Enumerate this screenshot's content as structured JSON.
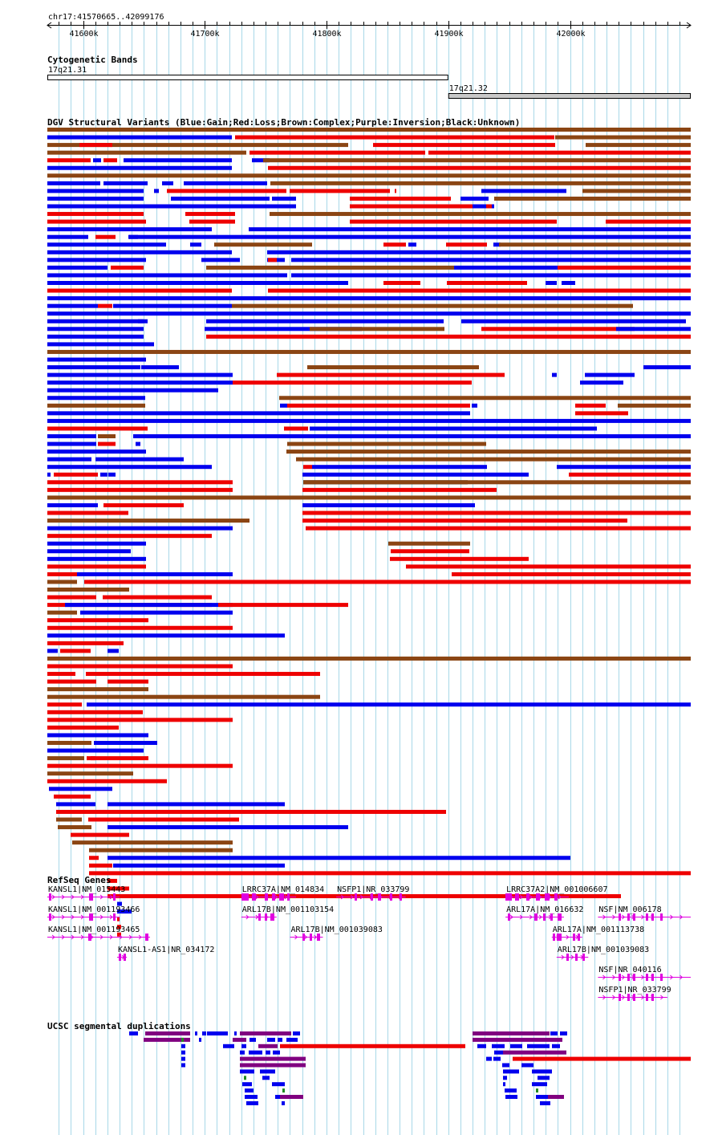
{
  "view": {
    "title": "chr17:41570665..42099176",
    "start": 41570665,
    "end": 42099176,
    "ticks": [
      {
        "pos": 41600000,
        "label": "41600k"
      },
      {
        "pos": 41700000,
        "label": "41700k"
      },
      {
        "pos": 41800000,
        "label": "41800k"
      },
      {
        "pos": 41900000,
        "label": "41900k"
      },
      {
        "pos": 42000000,
        "label": "42000k"
      }
    ],
    "grid_step": 10000
  },
  "colors": {
    "blue": "#0000ee",
    "red": "#ee0000",
    "brown": "#8b4513",
    "black": "#000000",
    "purple": "#800080",
    "green": "#228b22",
    "magenta": "#e000e0",
    "grid": "#a8d8e8",
    "band": "#c8c8c8"
  },
  "tracks": {
    "cyto": {
      "title": "Cytogenetic Bands",
      "bands": [
        {
          "name": "17q21.31",
          "start": 41570665,
          "end": 41900000,
          "fill": "#ffffff"
        },
        {
          "name": "17q21.32",
          "start": 41900000,
          "end": 42099176,
          "fill": "#c8c8c8"
        }
      ]
    },
    "dgv": {
      "title": "DGV Structural Variants (Blue:Gain;Red:Loss;Brown:Complex;Purple:Inversion;Black:Unknown)",
      "legend": {
        "B": "Gain",
        "R": "Loss",
        "N": "Complex",
        "P": "Inversion",
        "K": "Unknown"
      },
      "rows": [
        "N:41570665-42099176",
        "B:41570665-41722000|R:41725000-41987000|N:41988000-42099176",
        "N:41570665-41818000|R:41597000-41624000|R:41838000-41988000|N:42013000-42099176",
        "N:41570665-41734000|R:41737000-41881000|R:41884000-42099176",
        "R:41570665-41606000|B:41608000-41615000|R:41617000-41628000|B:41633000-41722000|B:41739000-41753000|N:41748000-42099176",
        "B:41570665-41722000|R:41752000-42099176",
        "N:41570665-42099176",
        "B:41570665-41614000|B:41617000-41653000|B:41665000-41674000|B:41683000-41751000|N:41754000-42099176",
        "B:41570665-41650000|B:41658000-41662000|R:41669000-41767000|R:41770000-41852000|R:41856000-41857000|B:41927000-41997000|N:42010000-42099176",
        "B:41570665-41650000|B:41672000-41753000|B:41755000-41775000|R:41819000-41902000|B:41910000-41933000|N:41938000-42099176",
        "B:41570665-41775000|R:41819000-41938000|B:41920000-41931000|B:41936000-41938000",
        "R:41570665-41650000|R:41684000-41725000|N:41753000-42099176",
        "R:41570665-41652000|R:41687000-41725000|R:41819000-41967000|R:41925000-41989000|R:42029000-42099176",
        "B:41570665-41706000|B:41736000-42099176",
        "B:41570665-41604000|R:41610000-41627000|B:41637000-41645000|B:41638000-42099176",
        "B:41570665-41668000|B:41688000-41697000|N:41708000-41788000|R:41847000-41865000|B:41867000-41874000|R:41898000-41932000|B:41937000-41943000|N:41942000-42099176",
        "B:41570665-41722000|B:41751000-42099176",
        "B:41570665-41652000|B:41697000-41729000|B:41751000-41766000|R:41752000-41759000|B:41771000-42099176",
        "B:41570665-41620000|R:41623000-41650000|N:41701000-41905000|B:41905000-41990000|R:41990000-42099176",
        "B:41570665-41768000|B:41771000-42099176",
        "B:41570665-41818000|R:41847000-41877000|R:41899000-41965000|B:41980000-41989000|B:41993000-42004000",
        "R:41570665-41722000|R:41752000-42099176",
        "B:41570665-42099176",
        "B:41570665-41612000|R:41612000-41624000|B:41625000-41722000|N:41722000-42052000",
        "B:41570665-42099176",
        "B:41570665-41653000|B:41645000-41650000|B:41701000-41896000|B:41911000-42095000",
        "B:41570665-41650000|B:41700000-41829000|N:41786000-41897000|R:41927000-42053000|B:42038000-42099176",
        "B:41570665-41650000|R:41701000-42099176",
        "B:41570665-41658000",
        "N:41570665-42099176",
        "B:41570665-41652000",
        "B:41570665-41647000|B:41648000-41679000|N:41784000-41925000|B:42060000-42099176",
        "B:41570665-41723000|R:41759000-41946000|B:41985000-41989000|B:42012000-42053000",
        "B:41570665-41723000|R:41723000-41919000|B:42008000-42044000",
        "B:41570665-41711000",
        "B:41570665-41651000|N:41761000-42099176",
        "N:41570665-41651000|B:41762000-41768000|R:41768000-41918000|B:41919000-41924000|R:42004000-42029000|N:42039000-42099176",
        "B:41570665-41918000|R:42004000-42048000",
        "B:41570665-42099176",
        "R:41570665-41653000|R:41765000-41785000|B:41786000-42022000",
        "B:41570665-41611000|N:41612000-41627000|B:41641000-42099176",
        "B:41570665-41611000|R:41612000-41627000|B:41643000-41647000|N:41768000-41931000",
        "B:41570665-41652000|N:41767000-42099176",
        "B:41570665-41607000|B:41610000-41683000|N:41775000-42099176",
        "B:41570665-41706000|R:41781000-41788000|B:41788000-41932000|B:41989000-42099176",
        "B:41570665-41573000|R:41576000-41612000|B:41614000-41620000|B:41621000-41627000|B:41780000-41966000|R:41999000-42099176",
        "R:41570665-41723000|K:41781000-41916000|N:41781000-42099176",
        "R:41570665-41723000|R:41780000-41940000",
        "N:41570665-42099176",
        "B:41570665-41612000|R:41617000-41683000|B:41780000-41922000",
        "R:41570665-41637000|R:41780000-42099176",
        "N:41570665-41737000|R:41780000-42047000",
        "B:41570665-41723000|R:41783000-42099176",
        "R:41570665-41706000",
        "B:41570665-41652000|N:41851000-41918000",
        "B:41570665-41639000|R:41853000-41917000",
        "B:41570665-41652000|R:41852000-41966000",
        "R:41570665-41652000|R:41865000-42099176",
        "R:41570665-41595000|B:41595000-41723000|R:41903000-42099176",
        "N:41570665-41595000|R:41605000-41629000|R:41601000-42099176",
        "N:41570665-41638000",
        "R:41570665-41611000|R:41616000-41706000",
        "R:41570665-41706000|B:41585000-41723000|R:41711000-41818000",
        "N:41570665-41595000|B:41598000-41723000",
        "R:41570665-41654000",
        "R:41570665-41723000",
        "B:41570665-41766000",
        "R:41570665-41633000",
        "B:41570665-41579000|R:41581000-41606000|B:41620000-41629000",
        "N:41570665-42099176",
        "R:41570665-41723000",
        "R:41570665-41594000|R:41602000-41795000",
        "R:41570665-41611000|R:41620000-41654000",
        "N:41570665-41654000",
        "N:41570665-41795000",
        "R:41570665-41599000|B:41603000-42099176",
        "R:41570665-41649000",
        "R:41570665-41723000",
        "R:41570665-41629000",
        "B:41570665-41654000",
        "N:41570665-41607000|B:41609000-41661000",
        "B:41570665-41650000",
        "N:41570665-41601000|R:41606000-41610000|R:41603000-41654000",
        "R:41570665-41723000",
        "N:41570665-41641000",
        "R:41570665-41669000",
        "B:41572000-41624000",
        "R:41576000-41606000",
        "B:41578000-41610000|B:41620000-41766000",
        "R:41578000-41898000",
        "N:41578000-41599000|R:41604000-41728000",
        "N:41579000-41607000|B:41620000-41818000",
        "R:41590000-41638000",
        "N:41591000-41723000",
        "N:41605000-41723000",
        "R:41605000-41613000|B:41620000-42000000",
        "R:41605000-41624000|B:41625000-41766000",
        "R:41605000-42099176",
        "R:41620000-41628000",
        "R:41620000-41638000",
        "R:41620000-42042000",
        "B:41628000-41632000",
        "B:41628000-41640000",
        "R:41628000-41630000",
        "R:41628000-41631000",
        "R:41628000-41631000"
      ]
    },
    "refseq": {
      "title": "RefSeq Genes",
      "genes": [
        {
          "label": "KANSL1|NM_015443",
          "start": 41570665,
          "end": 41630000,
          "exons": [
            [
              41572000,
              41574000
            ],
            [
              41605000,
              41608000
            ],
            [
              41625000,
              41627000
            ]
          ],
          "lane": 0
        },
        {
          "label": "KANSL1|NM_001193466",
          "start": 41570665,
          "end": 41630000,
          "exons": [
            [
              41572000,
              41574000
            ],
            [
              41605000,
              41608000
            ],
            [
              41625000,
              41627000
            ]
          ],
          "lane": 1
        },
        {
          "label": "KANSL1|NM_001193465",
          "start": 41570665,
          "end": 41655000,
          "exons": [
            [
              41604000,
              41607000
            ],
            [
              41651000,
              41654000
            ]
          ],
          "lane": 2
        },
        {
          "label": "KANSL1-AS1|NR_034172",
          "start": 41628000,
          "end": 41636000,
          "exons": [
            [
              41629000,
              41631000
            ],
            [
              41633000,
              41635000
            ]
          ],
          "lane": 3
        },
        {
          "label": "LRRC37A|NM_014834",
          "start": 41730000,
          "end": 41775000,
          "exons": [
            [
              41730000,
              41736000
            ],
            [
              41739000,
              41742000
            ],
            [
              41749000,
              41752000
            ],
            [
              41755000,
              41758000
            ],
            [
              41761000,
              41765000
            ],
            [
              41768000,
              41770000
            ]
          ],
          "lane": 0
        },
        {
          "label": "ARL17B|NM_001103154",
          "start": 41730000,
          "end": 41759000,
          "exons": [
            [
              41744000,
              41746000
            ],
            [
              41749000,
              41751000
            ],
            [
              41754000,
              41757000
            ]
          ],
          "lane": 1
        },
        {
          "label": "ARL17B|NM_001039083",
          "start": 41770000,
          "end": 41797000,
          "exons": [
            [
              41780000,
              41782000
            ],
            [
              41786000,
              41788000
            ],
            [
              41792000,
              41795000
            ]
          ],
          "lane": 2
        },
        {
          "label": "NSFP1|NR_033799",
          "start": 41808000,
          "end": 41865000,
          "exons": [
            [
              41823000,
              41825000
            ],
            [
              41836000,
              41838000
            ],
            [
              41842000,
              41845000
            ],
            [
              41852000,
              41854000
            ],
            [
              41860000,
              41862000
            ]
          ],
          "lane": 0
        },
        {
          "label": "LRRC37A2|NM_001006607",
          "start": 41947000,
          "end": 41999000,
          "exons": [
            [
              41947000,
              41952000
            ],
            [
              41955000,
              41958000
            ],
            [
              41964000,
              41967000
            ],
            [
              41972000,
              41975000
            ],
            [
              41979000,
              41983000
            ],
            [
              41987000,
              41990000
            ]
          ],
          "lane": 0
        },
        {
          "label": "ARL17A|NM_016632",
          "start": 41947000,
          "end": 41995000,
          "exons": [
            [
              41949000,
              41951000
            ],
            [
              41971000,
              41973000
            ],
            [
              41978000,
              41980000
            ],
            [
              41984000,
              41986000
            ],
            [
              41990000,
              41993000
            ]
          ],
          "lane": 1
        },
        {
          "label": "ARL17A|NM_001113738",
          "start": 41985000,
          "end": 42010000,
          "exons": [
            [
              41986000,
              41988000
            ],
            [
              41989000,
              41993000
            ],
            [
              42002000,
              42004000
            ],
            [
              42006000,
              42008000
            ]
          ],
          "lane": 2
        },
        {
          "label": "ARL17B|NM_001039083",
          "start": 41989000,
          "end": 42015000,
          "exons": [
            [
              41997000,
              41999000
            ],
            [
              42004000,
              42006000
            ],
            [
              42010000,
              42012000
            ]
          ],
          "lane": 3
        },
        {
          "label": "NSF|NM_006178",
          "start": 42023000,
          "end": 42099176,
          "exons": [
            [
              42040000,
              42042000
            ],
            [
              42047000,
              42049000
            ],
            [
              42052000,
              42054000
            ],
            [
              42062000,
              42064000
            ],
            [
              42067000,
              42069000
            ],
            [
              42074000,
              42076000
            ]
          ],
          "lane": 1
        },
        {
          "label": "NSF|NR_040116",
          "start": 42023000,
          "end": 42099176,
          "exons": [
            [
              42040000,
              42042000
            ],
            [
              42047000,
              42049000
            ],
            [
              42052000,
              42054000
            ],
            [
              42062000,
              42064000
            ],
            [
              42067000,
              42069000
            ],
            [
              42074000,
              42076000
            ]
          ],
          "lane": 4
        },
        {
          "label": "NSFP1|NR_033799",
          "start": 42023000,
          "end": 42080000,
          "exons": [
            [
              42040000,
              42042000
            ],
            [
              42047000,
              42049000
            ],
            [
              42052000,
              42054000
            ],
            [
              42062000,
              42064000
            ],
            [
              42067000,
              42069000
            ]
          ],
          "lane": 5
        }
      ]
    },
    "segdups": {
      "title": "UCSC segmental duplications",
      "rows": [
        "B:41638000-41645000|P:41651000-41688000|B:41692000-41694000|B:41698000-41701000|B:41702000-41719000|B:41724000-41726000|P:41729000-41771000|B:41772000-41778000|P:41920000-41983000|B:41984000-41990000|B:41992000-41998000",
        "P:41650000-41688000|G:41681000-41683000|B:41695000-41697000|P:41723000-41734000|B:41737000-41742000|B:41751000-41758000|B:41760000-41764000|B:41767000-41776000|P:41920000-41994000",
        "B:41681000-41684000|B:41715000-41724000|B:41730000-41734000|P:41744000-41760000|R:41762000-41914000|B:41924000-41931000|B:41936000-41946000|B:41951000-41961000|B:41965000-41983000|B:41985000-41992000",
        "B:41681000-41684000|B:41729000-41733000|B:41736000-41747000|B:41750000-41754000|B:41756000-41762000|B:41938000-41945000|P:41945000-41997000",
        "B:41681000-41684000|P:41729000-41783000|B:41931000-41936000|B:41937000-41943000|R:41953000-42099176",
        "B:41681000-41684000|P:41729000-41783000|B:41944000-41950000|B:41960000-41970000",
        "B:41729000-41741000|B:41745000-41758000|B:41945000-41958000|B:41969000-41985000",
        "G:41732000-41734000|B:41747000-41753000|B:41945000-41948000|B:41973000-41983000",
        "B:41731000-41739000|B:41755000-41766000|B:41945000-41947000|B:41969000-41981000",
        "B:41733000-41740000|G:41764000-41766000|B:41946000-41956000|G:41972000-41974000",
        "B:41733000-41743000|B:41758000-41762000|P:41762000-41781000|B:41947000-41957000|B:41972000-41985000|P:41982000-41995000",
        "B:41734000-41744000|B:41763000-41766000|B:41975000-41984000"
      ]
    }
  }
}
